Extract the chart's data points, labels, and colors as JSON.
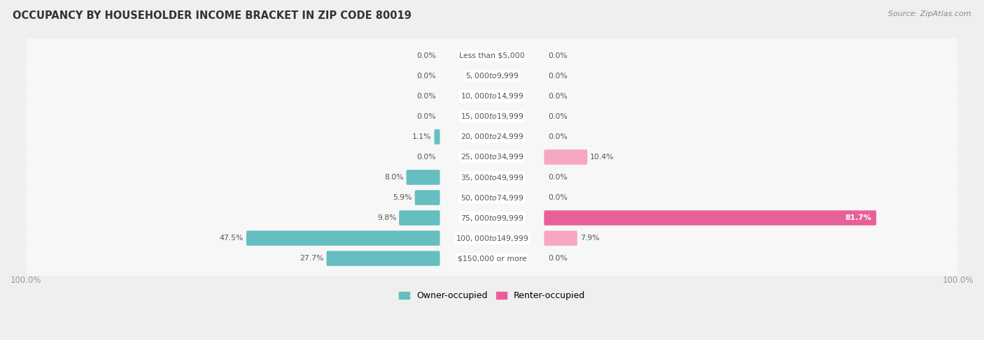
{
  "title": "OCCUPANCY BY HOUSEHOLDER INCOME BRACKET IN ZIP CODE 80019",
  "source": "Source: ZipAtlas.com",
  "categories": [
    "Less than $5,000",
    "$5,000 to $9,999",
    "$10,000 to $14,999",
    "$15,000 to $19,999",
    "$20,000 to $24,999",
    "$25,000 to $34,999",
    "$35,000 to $49,999",
    "$50,000 to $74,999",
    "$75,000 to $99,999",
    "$100,000 to $149,999",
    "$150,000 or more"
  ],
  "owner_values": [
    0.0,
    0.0,
    0.0,
    0.0,
    1.1,
    0.0,
    8.0,
    5.9,
    9.8,
    47.5,
    27.7
  ],
  "renter_values": [
    0.0,
    0.0,
    0.0,
    0.0,
    0.0,
    10.4,
    0.0,
    0.0,
    81.7,
    7.9,
    0.0
  ],
  "owner_color": "#65bec0",
  "owner_color_dark": "#2a9d9f",
  "renter_color": "#f5a8bf",
  "renter_color_dark": "#e8609a",
  "bg_color": "#efefef",
  "row_bg_color": "#f7f7f7",
  "label_color": "#555555",
  "title_color": "#333333",
  "source_color": "#888888",
  "tick_color": "#999999",
  "max_value": 100.0,
  "label_zone_half": 13.0,
  "legend_owner": "Owner-occupied",
  "legend_renter": "Renter-occupied"
}
